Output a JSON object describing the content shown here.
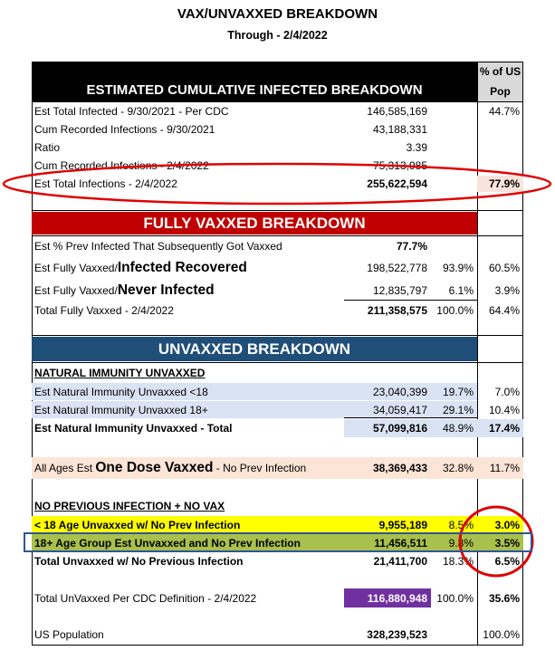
{
  "title": "VAX/UNVAXXED BREAKDOWN",
  "subtitle": "Through - 2/4/2022",
  "pop_header": [
    "% of US",
    "Pop"
  ],
  "cumulative": {
    "heading": "ESTIMATED CUMULATIVE INFECTED BREAKDOWN",
    "rows": [
      {
        "label": "Est Total Infected - 9/30/2021 - Per CDC",
        "count": "146,585,169",
        "pop": "44.7%"
      },
      {
        "label": "Cum Recorded Infections - 9/30/2021",
        "count": "43,188,331"
      },
      {
        "label": "Ratio",
        "count": "3.39"
      },
      {
        "label": "Cum Recorded Infections - 2/4/2022",
        "count": "75,313,985"
      },
      {
        "label": "Est Total Infections - 2/4/2022",
        "count": "255,622,594",
        "pop": "77.9%"
      }
    ]
  },
  "vaxxed": {
    "heading": "FULLY VAXXED BREAKDOWN",
    "rows": [
      {
        "label": "Est % Prev Infected That Subsequently Got Vaxxed",
        "count": "77.7%"
      },
      {
        "label": "Est Fully Vaxxed/",
        "label_emphasis": "Infected Recovered",
        "count": "198,522,778",
        "share": "93.9%",
        "pop": "60.5%"
      },
      {
        "label": "Est Fully Vaxxed/",
        "label_emphasis": "Never Infected",
        "count": "12,835,797",
        "share": "6.1%",
        "pop": "3.9%"
      },
      {
        "label": "Total Fully Vaxxed - 2/4/2022",
        "count": "211,358,575",
        "share": "100.0%",
        "pop": "64.4%"
      }
    ]
  },
  "unvaxxed": {
    "heading": "UNVAXXED BREAKDOWN",
    "rows": [
      {
        "label": "NATURAL IMMUNITY UNVAXXED"
      },
      {
        "label": "Est Natural Immunity Unvaxxed <18",
        "count": "23,040,399",
        "share": "19.7%",
        "pop": "7.0%"
      },
      {
        "label": "Est Natural Immunity Unvaxxed 18+",
        "count": "34,059,417",
        "share": "29.1%",
        "pop": "10.4%"
      },
      {
        "label": "Est Natural Immunity Unvaxxed - Total",
        "count": "57,099,816",
        "share": "48.9%",
        "pop": "17.4%"
      },
      {
        "label": "All Ages Est ",
        "label_emphasis": "One Dose Vaxxed",
        "label_suffix": " - No Prev Infection",
        "count": "38,369,433",
        "share": "32.8%",
        "pop": "11.7%"
      },
      {
        "label": "NO PREVIOUS INFECTION + NO VAX"
      },
      {
        "label": "< 18 Age Unvaxxed w/ No Prev Infection",
        "count": "9,955,189",
        "share": "8.5%",
        "pop": "3.0%"
      },
      {
        "label": "18+ Age Group Est Unvaxxed and No Prev Infection",
        "count": "11,456,511",
        "share": "9.8%",
        "pop": "3.5%"
      },
      {
        "label": "Total Unvaxxed w/ No Previous Infection",
        "count": "21,411,700",
        "share": "18.3%",
        "pop": "6.5%"
      },
      {
        "label": "Total UnVaxxed Per CDC Definition - 2/4/2022",
        "count": "116,880,948",
        "share": "100.0%",
        "pop": "35.6%"
      },
      {
        "label": "US Population",
        "count": "328,239,523",
        "pop": "100.0%"
      }
    ]
  }
}
